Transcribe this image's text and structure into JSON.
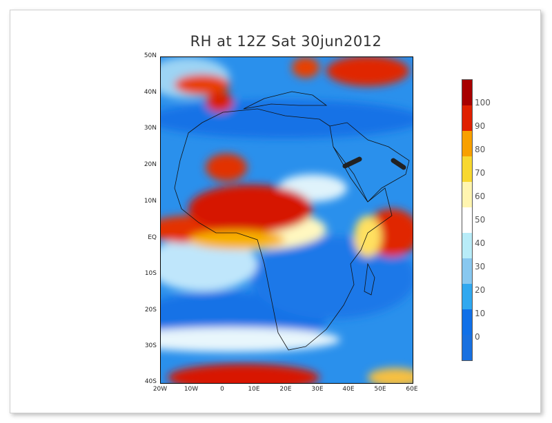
{
  "title": "RH at 12Z Sat 30jun2012",
  "map": {
    "lat_ticks": [
      "50N",
      "40N",
      "30N",
      "20N",
      "10N",
      "EQ",
      "10S",
      "20S",
      "30S",
      "40S"
    ],
    "lon_ticks": [
      "20W",
      "10W",
      "0",
      "10E",
      "20E",
      "30E",
      "40E",
      "50E",
      "60E"
    ],
    "extent": {
      "lon": [
        -20,
        60
      ],
      "lat": [
        -40,
        50
      ]
    }
  },
  "colorbar": {
    "labels": [
      "100",
      "90",
      "80",
      "70",
      "60",
      "50",
      "40",
      "30",
      "20",
      "10",
      "0"
    ],
    "colors": [
      "#a80000",
      "#e02000",
      "#f8a000",
      "#f8d830",
      "#fff5b0",
      "#ffffff",
      "#b8ecf8",
      "#88c8f0",
      "#30a8f0",
      "#1070e8",
      "#1870e0"
    ]
  }
}
